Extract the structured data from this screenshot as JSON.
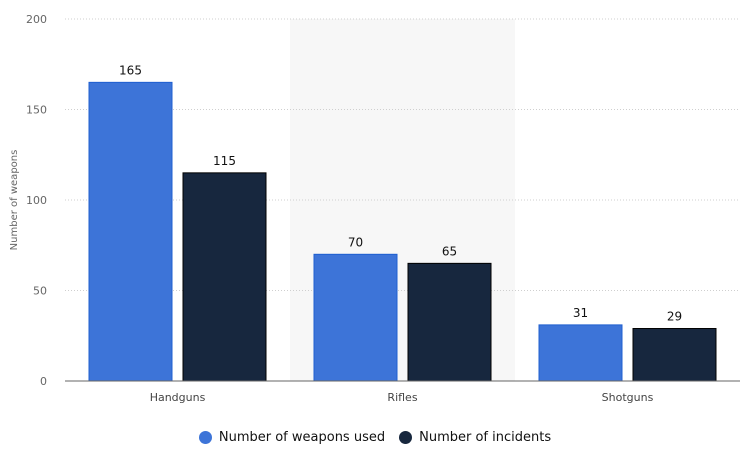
{
  "chart_data": {
    "type": "bar",
    "title": "",
    "xlabel": "",
    "ylabel": "Number of weapons",
    "ylim": [
      0,
      200
    ],
    "yticks": [
      0,
      50,
      100,
      150,
      200
    ],
    "grid": true,
    "legend_position": "bottom",
    "categories": [
      "Handguns",
      "Rifles",
      "Shotguns"
    ],
    "highlighted_category": "Rifles",
    "series": [
      {
        "name": "Number of weapons used",
        "color": "#3d74d8",
        "values": [
          165,
          70,
          31
        ]
      },
      {
        "name": "Number of incidents",
        "color": "#17273e",
        "values": [
          115,
          65,
          29
        ]
      }
    ]
  }
}
